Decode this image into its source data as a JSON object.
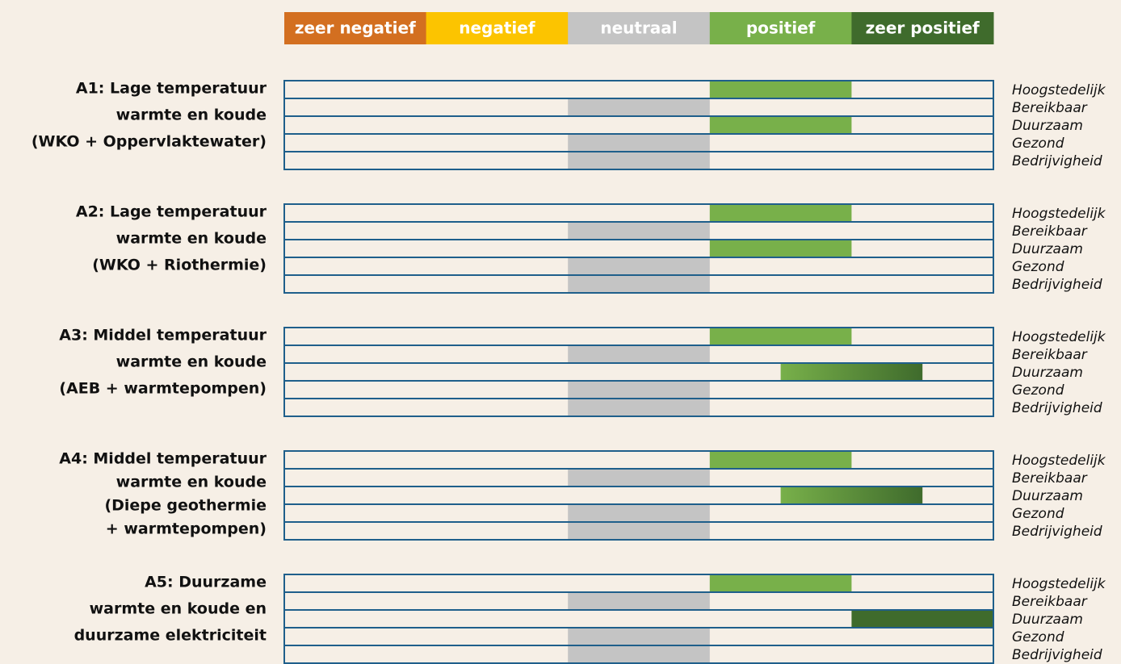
{
  "legend": [
    {
      "label": "zeer negatief",
      "color": "#d36f20"
    },
    {
      "label": "negatief",
      "color": "#fcc400"
    },
    {
      "label": "neutraal",
      "color": "#c4c4c4"
    },
    {
      "label": "positief",
      "color": "#78b04a"
    },
    {
      "label": "zeer positief",
      "color": "#3f6b2c"
    }
  ],
  "groups": [
    {
      "title": [
        "A1: Lage temperatuur",
        "warmte en koude",
        "(WKO + Oppervlaktewater)"
      ],
      "rows": [
        {
          "label": "Hoogstedelijk",
          "score": 4
        },
        {
          "label": "Bereikbaar",
          "score": 3
        },
        {
          "label": "Duurzaam",
          "score": 4
        },
        {
          "label": "Gezond",
          "score": 3
        },
        {
          "label": "Bedrijvigheid",
          "score": 3
        }
      ]
    },
    {
      "title": [
        "A2: Lage temperatuur",
        "warmte en koude",
        "(WKO + Riothermie)"
      ],
      "rows": [
        {
          "label": "Hoogstedelijk",
          "score": 4
        },
        {
          "label": "Bereikbaar",
          "score": 3
        },
        {
          "label": "Duurzaam",
          "score": 4
        },
        {
          "label": "Gezond",
          "score": 3
        },
        {
          "label": "Bedrijvigheid",
          "score": 3
        }
      ]
    },
    {
      "title": [
        "A3: Middel temperatuur",
        "warmte en koude",
        "(AEB + warmtepompen)"
      ],
      "rows": [
        {
          "label": "Hoogstedelijk",
          "score": 4
        },
        {
          "label": "Bereikbaar",
          "score": 3
        },
        {
          "label": "Duurzaam",
          "score": 4.5
        },
        {
          "label": "Gezond",
          "score": 3
        },
        {
          "label": "Bedrijvigheid",
          "score": 3
        }
      ]
    },
    {
      "title": [
        "A4: Middel temperatuur",
        "warmte en koude",
        "(Diepe geothermie",
        "+ warmtepompen)"
      ],
      "rows": [
        {
          "label": "Hoogstedelijk",
          "score": 4
        },
        {
          "label": "Bereikbaar",
          "score": 3
        },
        {
          "label": "Duurzaam",
          "score": 4.5
        },
        {
          "label": "Gezond",
          "score": 3
        },
        {
          "label": "Bedrijvigheid",
          "score": 3
        }
      ]
    },
    {
      "title": [
        "A5: Duurzame",
        "warmte en koude en",
        "duurzame elektriciteit"
      ],
      "rows": [
        {
          "label": "Hoogstedelijk",
          "score": 4
        },
        {
          "label": "Bereikbaar",
          "score": 3
        },
        {
          "label": "Duurzaam",
          "score": 5
        },
        {
          "label": "Gezond",
          "score": 3
        },
        {
          "label": "Bedrijvigheid",
          "score": 3
        }
      ]
    }
  ]
}
